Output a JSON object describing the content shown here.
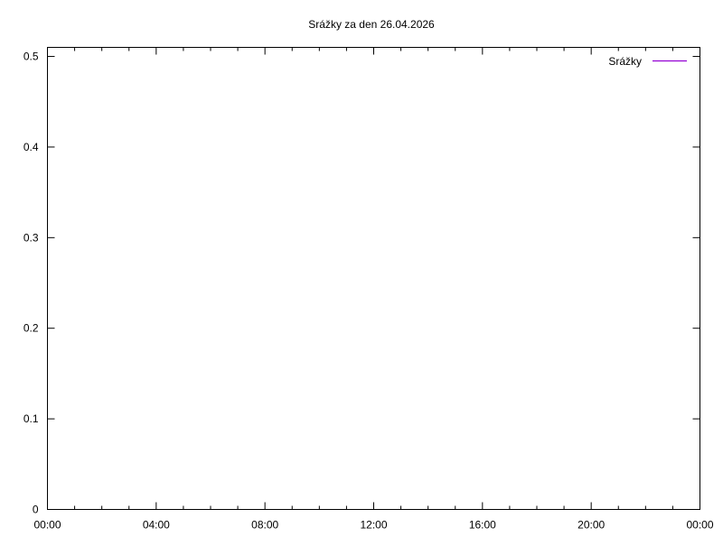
{
  "chart_data": {
    "type": "line",
    "title": "Srážky za den 26.04.2026",
    "xlabel": "",
    "ylabel": "",
    "xlim": [
      "00:00",
      "24:00"
    ],
    "ylim": [
      0,
      0.51
    ],
    "x_ticks": [
      "00:00",
      "04:00",
      "08:00",
      "12:00",
      "16:00",
      "20:00",
      "00:00"
    ],
    "y_ticks": [
      "0",
      "0.1",
      "0.2",
      "0.3",
      "0.4",
      "0.5"
    ],
    "grid": false,
    "legend_position": "top-right",
    "series": [
      {
        "name": "Srážky",
        "color": "#9400d3",
        "x": [],
        "y": []
      }
    ]
  }
}
